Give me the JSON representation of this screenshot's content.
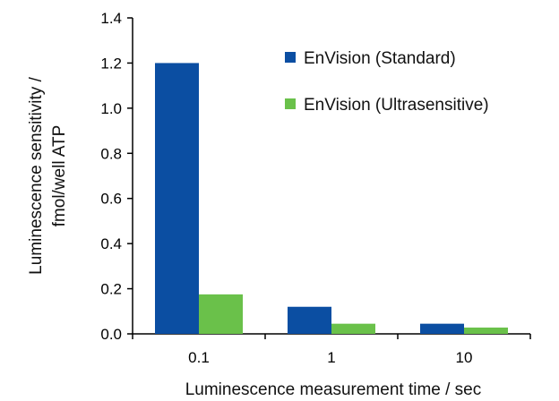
{
  "chart_data": {
    "type": "bar",
    "title": "",
    "categories": [
      "0.1",
      "1",
      "10"
    ],
    "series": [
      {
        "name": "EnVision (Standard)",
        "color": "#0b4ea2",
        "values": [
          1.2,
          0.12,
          0.045
        ]
      },
      {
        "name": "EnVision (Ultrasensitive)",
        "color": "#6ac14a",
        "values": [
          0.175,
          0.045,
          0.028
        ]
      }
    ],
    "xlabel": "Luminescence  measurement  time / sec",
    "ylabel": [
      "Luminescence  sensitivity /",
      "fmol/well ATP"
    ],
    "ylim": [
      0,
      1.4
    ],
    "yticks": [
      "0.0",
      "0.2",
      "0.4",
      "0.6",
      "0.8",
      "1.0",
      "1.2",
      "1.4"
    ],
    "grid": false,
    "legend_position": "top-right"
  }
}
